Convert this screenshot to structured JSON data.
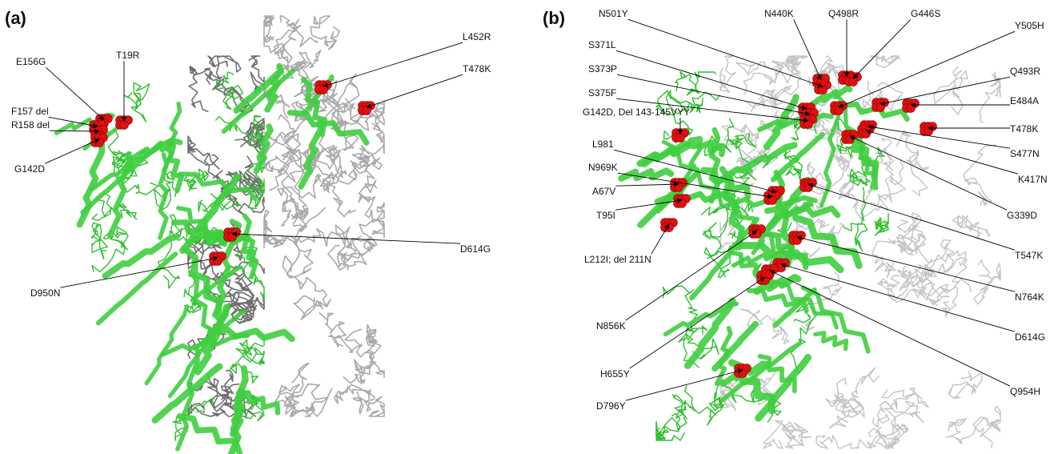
{
  "panels": [
    {
      "label": "(a)",
      "mutations": [
        "E156G",
        "T19R",
        "F157 del",
        "R158 del",
        "G142D",
        "L452R",
        "T478K",
        "D614G",
        "D950N"
      ]
    },
    {
      "label": "(b)",
      "mutations": [
        "N501Y",
        "N440K",
        "Q498R",
        "G446S",
        "Y505H",
        "S371L",
        "S373P",
        "S375F",
        "G142D, Del 143-145VYY",
        "Q493R",
        "E484A",
        "T478K",
        "S477N",
        "K417N",
        "L981",
        "N969K",
        "A67V",
        "T95I",
        "G339D",
        "L212I; del 211N",
        "T547K",
        "N764K",
        "N856K",
        "D614G",
        "H655Y",
        "Q954H",
        "D796Y"
      ]
    }
  ]
}
